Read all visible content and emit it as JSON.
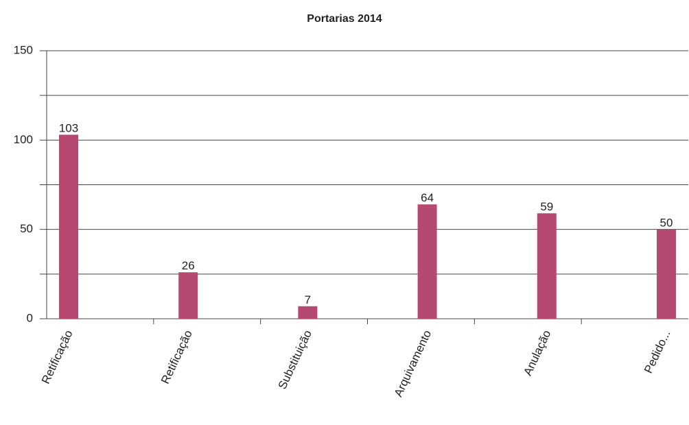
{
  "chart_data": {
    "type": "bar",
    "title": "Portarias 2014",
    "categories": [
      "Retificação",
      "Retificação",
      "Substituição",
      "Arquivamento",
      "Anulação",
      "Pedido..."
    ],
    "values": [
      103,
      26,
      7,
      64,
      59,
      50
    ],
    "color": "#b5496f",
    "ylim": [
      0,
      150
    ],
    "yticks": [
      0,
      50,
      100,
      150
    ],
    "minor_yticks": [
      25,
      75,
      125
    ],
    "grid": true
  }
}
